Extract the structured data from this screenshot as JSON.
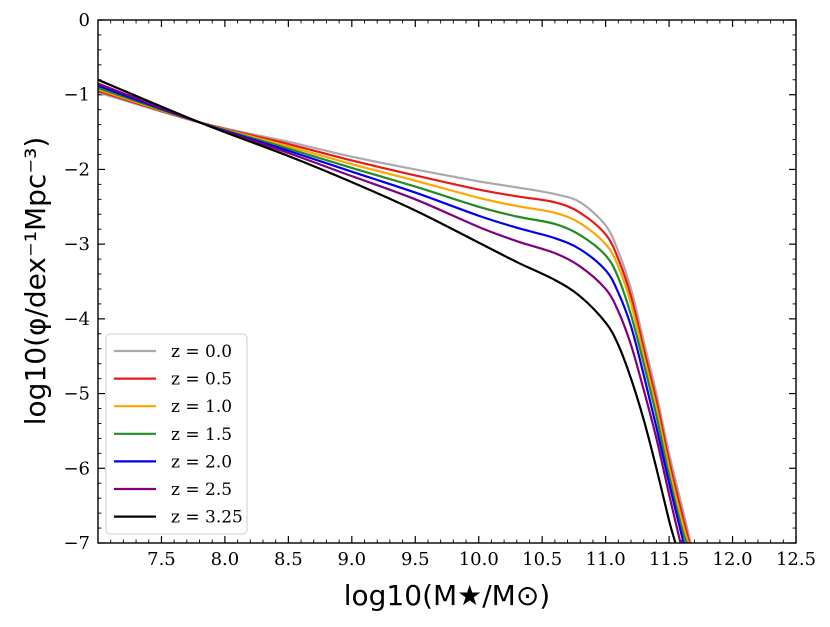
{
  "chart_data": {
    "type": "line",
    "title": "",
    "xlabel": "log10(M★/M⊙)",
    "ylabel": "log10(φ/dex⁻¹Mpc⁻³)",
    "xlim": [
      7.0,
      12.5
    ],
    "ylim": [
      -7,
      0
    ],
    "x_ticks": [
      7.5,
      8.0,
      8.5,
      9.0,
      9.5,
      10.0,
      10.5,
      11.0,
      11.5,
      12.0,
      12.5
    ],
    "x_tick_labels": [
      "7.5",
      "8.0",
      "8.5",
      "9.0",
      "9.5",
      "10.0",
      "10.5",
      "11.0",
      "11.5",
      "12.0",
      "12.5"
    ],
    "y_ticks": [
      0,
      -1,
      -2,
      -3,
      -4,
      -5,
      -6,
      -7
    ],
    "y_tick_labels": [
      "0",
      "−1",
      "−2",
      "−3",
      "−4",
      "−5",
      "−6",
      "−7"
    ],
    "legend_position": "lower-left",
    "series": [
      {
        "name": "z = 0.0",
        "color": "#aaaaaa",
        "points": [
          [
            7.0,
            -0.97
          ],
          [
            7.8,
            -1.37
          ],
          [
            8.5,
            -1.63
          ],
          [
            9.0,
            -1.83
          ],
          [
            9.5,
            -2.0
          ],
          [
            10.0,
            -2.16
          ],
          [
            10.3,
            -2.24
          ],
          [
            10.6,
            -2.33
          ],
          [
            10.8,
            -2.44
          ],
          [
            11.0,
            -2.75
          ],
          [
            11.1,
            -3.1
          ],
          [
            11.2,
            -3.6
          ],
          [
            11.3,
            -4.3
          ],
          [
            11.4,
            -5.0
          ],
          [
            11.5,
            -5.8
          ],
          [
            11.6,
            -6.5
          ],
          [
            11.67,
            -7.0
          ]
        ]
      },
      {
        "name": "z = 0.5",
        "color": "#e41a1c",
        "points": [
          [
            7.0,
            -0.95
          ],
          [
            7.8,
            -1.37
          ],
          [
            8.5,
            -1.66
          ],
          [
            9.0,
            -1.88
          ],
          [
            9.5,
            -2.08
          ],
          [
            10.0,
            -2.27
          ],
          [
            10.3,
            -2.36
          ],
          [
            10.6,
            -2.44
          ],
          [
            10.8,
            -2.58
          ],
          [
            11.0,
            -2.87
          ],
          [
            11.1,
            -3.2
          ],
          [
            11.2,
            -3.7
          ],
          [
            11.3,
            -4.4
          ],
          [
            11.4,
            -5.1
          ],
          [
            11.5,
            -5.9
          ],
          [
            11.6,
            -6.6
          ],
          [
            11.66,
            -7.0
          ]
        ]
      },
      {
        "name": "z = 1.0",
        "color": "#ffa500",
        "points": [
          [
            7.0,
            -0.93
          ],
          [
            7.8,
            -1.37
          ],
          [
            8.5,
            -1.69
          ],
          [
            9.0,
            -1.93
          ],
          [
            9.5,
            -2.15
          ],
          [
            10.0,
            -2.38
          ],
          [
            10.3,
            -2.49
          ],
          [
            10.6,
            -2.58
          ],
          [
            10.8,
            -2.72
          ],
          [
            11.0,
            -3.0
          ],
          [
            11.1,
            -3.3
          ],
          [
            11.2,
            -3.8
          ],
          [
            11.3,
            -4.5
          ],
          [
            11.4,
            -5.2
          ],
          [
            11.5,
            -6.0
          ],
          [
            11.6,
            -6.7
          ],
          [
            11.65,
            -7.0
          ]
        ]
      },
      {
        "name": "z = 1.5",
        "color": "#228b22",
        "points": [
          [
            7.0,
            -0.91
          ],
          [
            7.8,
            -1.37
          ],
          [
            8.5,
            -1.72
          ],
          [
            9.0,
            -1.98
          ],
          [
            9.5,
            -2.23
          ],
          [
            10.0,
            -2.5
          ],
          [
            10.3,
            -2.63
          ],
          [
            10.6,
            -2.73
          ],
          [
            10.8,
            -2.88
          ],
          [
            11.0,
            -3.15
          ],
          [
            11.1,
            -3.45
          ],
          [
            11.2,
            -3.95
          ],
          [
            11.3,
            -4.6
          ],
          [
            11.4,
            -5.3
          ],
          [
            11.5,
            -6.1
          ],
          [
            11.6,
            -6.8
          ],
          [
            11.64,
            -7.0
          ]
        ]
      },
      {
        "name": "z = 2.0",
        "color": "#0000ee",
        "points": [
          [
            7.0,
            -0.88
          ],
          [
            7.8,
            -1.37
          ],
          [
            8.5,
            -1.75
          ],
          [
            9.0,
            -2.03
          ],
          [
            9.5,
            -2.31
          ],
          [
            10.0,
            -2.62
          ],
          [
            10.3,
            -2.78
          ],
          [
            10.6,
            -2.92
          ],
          [
            10.8,
            -3.07
          ],
          [
            11.0,
            -3.35
          ],
          [
            11.1,
            -3.65
          ],
          [
            11.2,
            -4.1
          ],
          [
            11.3,
            -4.75
          ],
          [
            11.4,
            -5.45
          ],
          [
            11.5,
            -6.2
          ],
          [
            11.6,
            -6.9
          ],
          [
            11.62,
            -7.0
          ]
        ]
      },
      {
        "name": "z = 2.5",
        "color": "#800080",
        "points": [
          [
            7.0,
            -0.85
          ],
          [
            7.8,
            -1.37
          ],
          [
            8.5,
            -1.78
          ],
          [
            9.0,
            -2.09
          ],
          [
            9.5,
            -2.4
          ],
          [
            10.0,
            -2.77
          ],
          [
            10.3,
            -2.96
          ],
          [
            10.6,
            -3.12
          ],
          [
            10.8,
            -3.3
          ],
          [
            11.0,
            -3.6
          ],
          [
            11.1,
            -3.9
          ],
          [
            11.2,
            -4.35
          ],
          [
            11.3,
            -4.95
          ],
          [
            11.4,
            -5.6
          ],
          [
            11.5,
            -6.35
          ],
          [
            11.59,
            -7.0
          ]
        ]
      },
      {
        "name": "z = 3.25",
        "color": "#000000",
        "points": [
          [
            7.0,
            -0.8
          ],
          [
            7.8,
            -1.37
          ],
          [
            8.5,
            -1.82
          ],
          [
            9.0,
            -2.17
          ],
          [
            9.5,
            -2.55
          ],
          [
            10.0,
            -2.98
          ],
          [
            10.3,
            -3.24
          ],
          [
            10.6,
            -3.48
          ],
          [
            10.8,
            -3.7
          ],
          [
            11.0,
            -4.05
          ],
          [
            11.1,
            -4.35
          ],
          [
            11.2,
            -4.8
          ],
          [
            11.3,
            -5.35
          ],
          [
            11.4,
            -6.0
          ],
          [
            11.5,
            -6.7
          ],
          [
            11.55,
            -7.0
          ]
        ]
      }
    ]
  }
}
